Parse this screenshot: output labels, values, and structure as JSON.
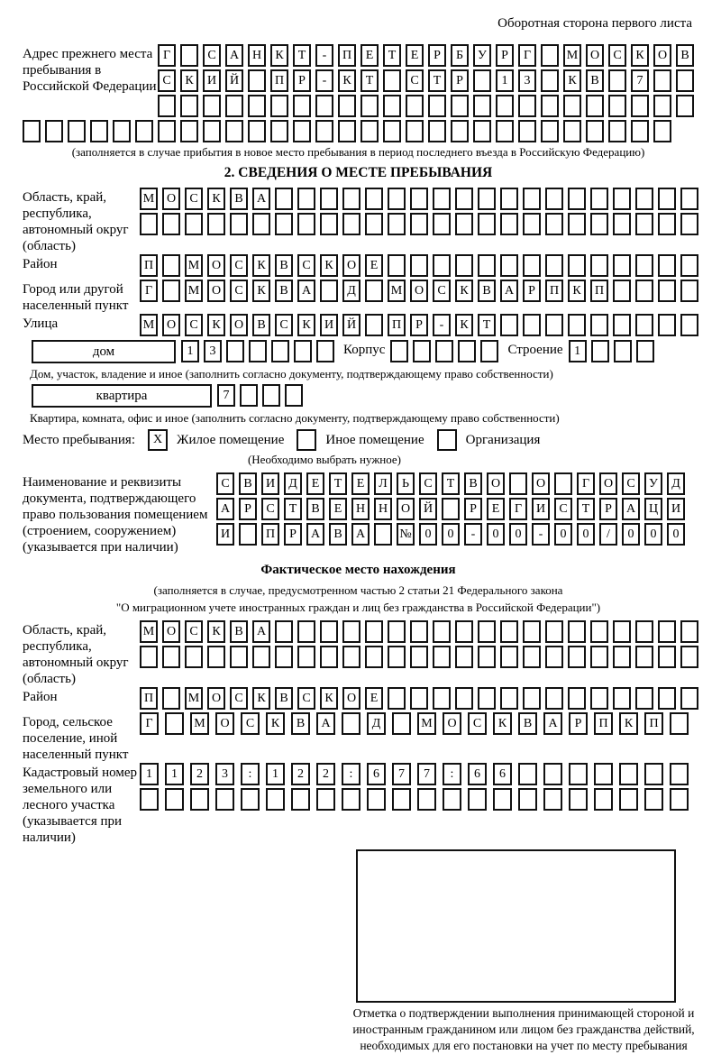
{
  "page": {
    "header_note": "Оборотная сторона первого листа"
  },
  "prev_address": {
    "label": "Адрес прежнего места пребывания в Российской Федерации",
    "rows": [
      {
        "n": 24,
        "text": "Г САНКТ-ПЕТЕРБУРГ МОСКОВ"
      },
      {
        "n": 24,
        "text": "СКИЙ ПР-КТ СТР 13 КВ 7"
      },
      {
        "n": 24,
        "text": ""
      },
      {
        "n": 29,
        "text": ""
      }
    ],
    "caption": "(заполняется в случае прибытия в новое место пребывания в период последнего въезда в Российскую Федерацию)"
  },
  "section2": {
    "title": "2. СВЕДЕНИЯ О МЕСТЕ ПРЕБЫВАНИЯ",
    "region": {
      "label": "Область, край, республика, автономный округ (область)",
      "rows": [
        {
          "n": 25,
          "text": "МОСКВА"
        },
        {
          "n": 25,
          "text": ""
        }
      ]
    },
    "district": {
      "label": "Район",
      "row": {
        "n": 25,
        "text": "П МОСКВСКОЕ"
      }
    },
    "city": {
      "label": "Город или другой населенный пункт",
      "row": {
        "n": 25,
        "text": "Г МОСКВА Д МОСКВАРПКП"
      }
    },
    "street": {
      "label": "Улица",
      "row": {
        "n": 25,
        "text": "МОСКОВСКИЙ ПР-КТ"
      }
    },
    "house": {
      "box_label": "дом",
      "cells": {
        "n": 7,
        "text": "13"
      },
      "korpus_label": "Корпус",
      "korpus_cells": {
        "n": 5,
        "text": ""
      },
      "stroenie_label": "Строение",
      "stroenie_cells": {
        "n": 4,
        "text": "1"
      },
      "caption": "Дом, участок, владение и иное (заполнить согласно документу, подтверждающему право собственности)"
    },
    "apartment": {
      "box_label": "квартира",
      "cells": {
        "n": 4,
        "text": "7"
      },
      "caption": "Квартира, комната, офис и иное (заполнить согласно документу, подтверждающему право собственности)"
    },
    "residence": {
      "label": "Место пребывания:",
      "options": [
        {
          "mark": "X",
          "label": "Жилое помещение"
        },
        {
          "mark": "",
          "label": "Иное помещение"
        },
        {
          "mark": "",
          "label": "Организация"
        }
      ],
      "note": "(Необходимо выбрать нужное)"
    },
    "document": {
      "label": "Наименование и реквизиты документа, подтверждающего право пользования помещением (строением, сооружением) (указывается при наличии)",
      "rows": [
        {
          "n": 21,
          "text": "СВИДЕТЕЛЬСТВО О ГОСУД"
        },
        {
          "n": 21,
          "text": "АРСТВЕННОЙ РЕГИСТРАЦИ"
        },
        {
          "n": 21,
          "text": "И ПРАВА №00-00-00/000"
        }
      ]
    }
  },
  "actual_location": {
    "title": "Фактическое место нахождения",
    "caption1": "(заполняется в случае, предусмотренном частью 2 статьи 21 Федерального закона",
    "caption2": "\"О миграционном учете иностранных граждан и лиц без гражданства в Российской Федерации\")",
    "region": {
      "label": "Область, край, республика, автономный округ (область)",
      "rows": [
        {
          "n": 25,
          "text": "МОСКВА"
        },
        {
          "n": 25,
          "text": ""
        }
      ]
    },
    "district": {
      "label": "Район",
      "row": {
        "n": 25,
        "text": "П МОСКВСКОЕ"
      }
    },
    "city": {
      "label": "Город, сельское поселение, иной населенный пункт",
      "row": {
        "n": 22,
        "text": "Г МОСКВА Д МОСКВАРПКП"
      }
    },
    "cadastral": {
      "label": "Кадастровый номер земельного или лесного участка (указывается при наличии)",
      "rows": [
        {
          "n": 22,
          "text": "1123:122:677:66"
        },
        {
          "n": 22,
          "text": ""
        }
      ]
    }
  },
  "stamp": {
    "caption": "Отметка о подтверждении выполнения принимающей стороной и иностранным гражданином или лицом без гражданства действий, необходимых для его постановки на учет по месту пребывания"
  }
}
